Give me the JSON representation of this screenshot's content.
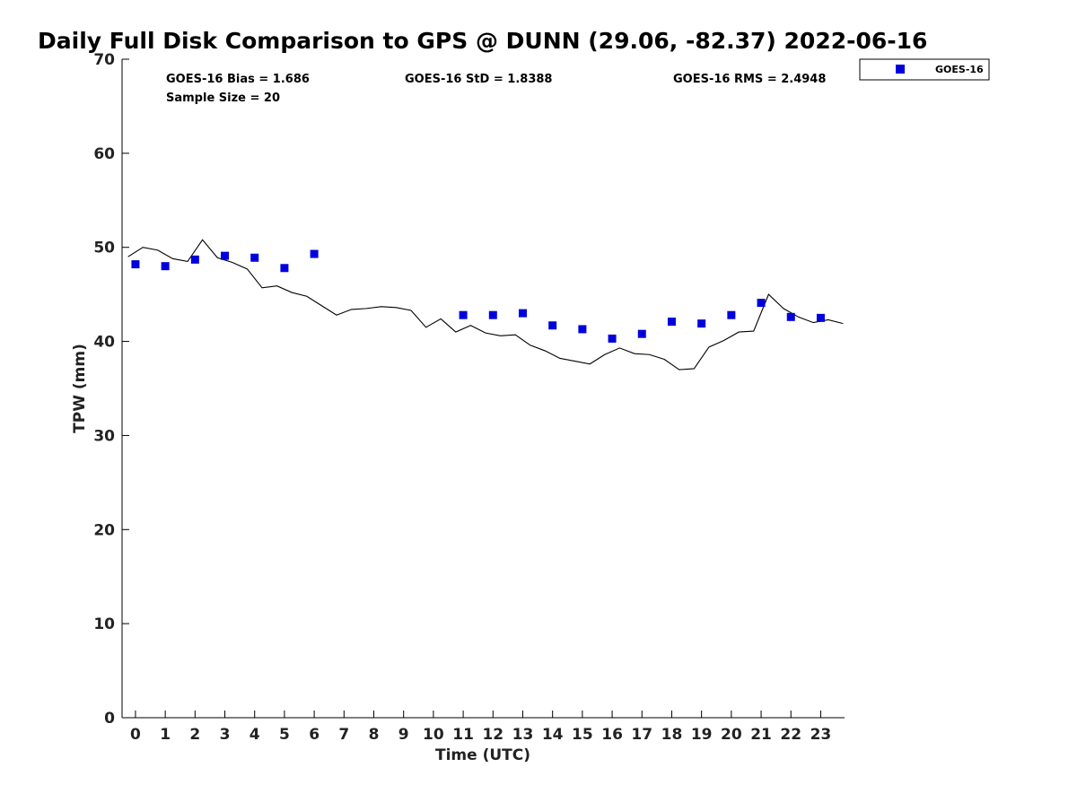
{
  "chart_data": {
    "type": "scatter",
    "title": "Daily Full Disk Comparison to GPS @ DUNN (29.06, -82.37) 2022-06-16",
    "xlabel": "Time (UTC)",
    "ylabel": "TPW (mm)",
    "xlim": [
      -0.45,
      23.8
    ],
    "ylim": [
      0,
      70
    ],
    "x_ticks": [
      0,
      1,
      2,
      3,
      4,
      5,
      6,
      7,
      8,
      9,
      10,
      11,
      12,
      13,
      14,
      15,
      16,
      17,
      18,
      19,
      20,
      21,
      22,
      23
    ],
    "y_ticks": [
      0,
      10,
      20,
      30,
      40,
      50,
      60,
      70
    ],
    "grid": false,
    "legend_position": "top-right outside",
    "stats": {
      "bias": "GOES-16 Bias = 1.686",
      "std": "GOES-16 StD = 1.8388",
      "rms": "GOES-16 RMS = 2.4948",
      "sample": "Sample Size = 20"
    },
    "series": [
      {
        "name": "GOES-16",
        "kind": "scatter",
        "marker": "square",
        "color": "#0000dd",
        "x": [
          0,
          1,
          2,
          3,
          4,
          5,
          6,
          11,
          12,
          13,
          14,
          15,
          16,
          17,
          18,
          19,
          20,
          21,
          22,
          23
        ],
        "y": [
          48.2,
          48.0,
          48.7,
          49.1,
          48.9,
          47.8,
          49.3,
          42.8,
          42.8,
          43.0,
          41.7,
          41.3,
          40.3,
          40.8,
          42.1,
          41.9,
          42.8,
          44.1,
          42.6,
          42.5
        ]
      },
      {
        "kind": "line",
        "color": "#000000",
        "x": [
          -0.25,
          0.25,
          0.75,
          1.25,
          1.75,
          2.25,
          2.75,
          3.25,
          3.75,
          4.25,
          4.75,
          5.25,
          5.75,
          6.25,
          6.75,
          7.25,
          7.75,
          8.25,
          8.75,
          9.25,
          9.75,
          10.25,
          10.75,
          11.25,
          11.75,
          12.25,
          12.75,
          13.25,
          13.75,
          14.25,
          14.75,
          15.25,
          15.75,
          16.25,
          16.75,
          17.25,
          17.75,
          18.25,
          18.75,
          19.25,
          19.75,
          20.25,
          20.75,
          21.25,
          21.75,
          22.25,
          22.75,
          23.25,
          23.75
        ],
        "y": [
          49.0,
          50.0,
          49.7,
          48.8,
          48.5,
          50.8,
          48.9,
          48.4,
          47.7,
          45.7,
          45.9,
          45.2,
          44.8,
          43.8,
          42.8,
          43.4,
          43.5,
          43.7,
          43.6,
          43.3,
          41.5,
          42.4,
          41.0,
          41.7,
          40.9,
          40.6,
          40.7,
          39.6,
          39.0,
          38.2,
          37.9,
          37.6,
          38.6,
          39.3,
          38.7,
          38.6,
          38.1,
          37.0,
          37.1,
          39.4,
          40.1,
          41.0,
          41.1,
          45.0,
          43.5,
          42.6,
          42.0,
          42.3,
          41.9
        ]
      }
    ]
  }
}
